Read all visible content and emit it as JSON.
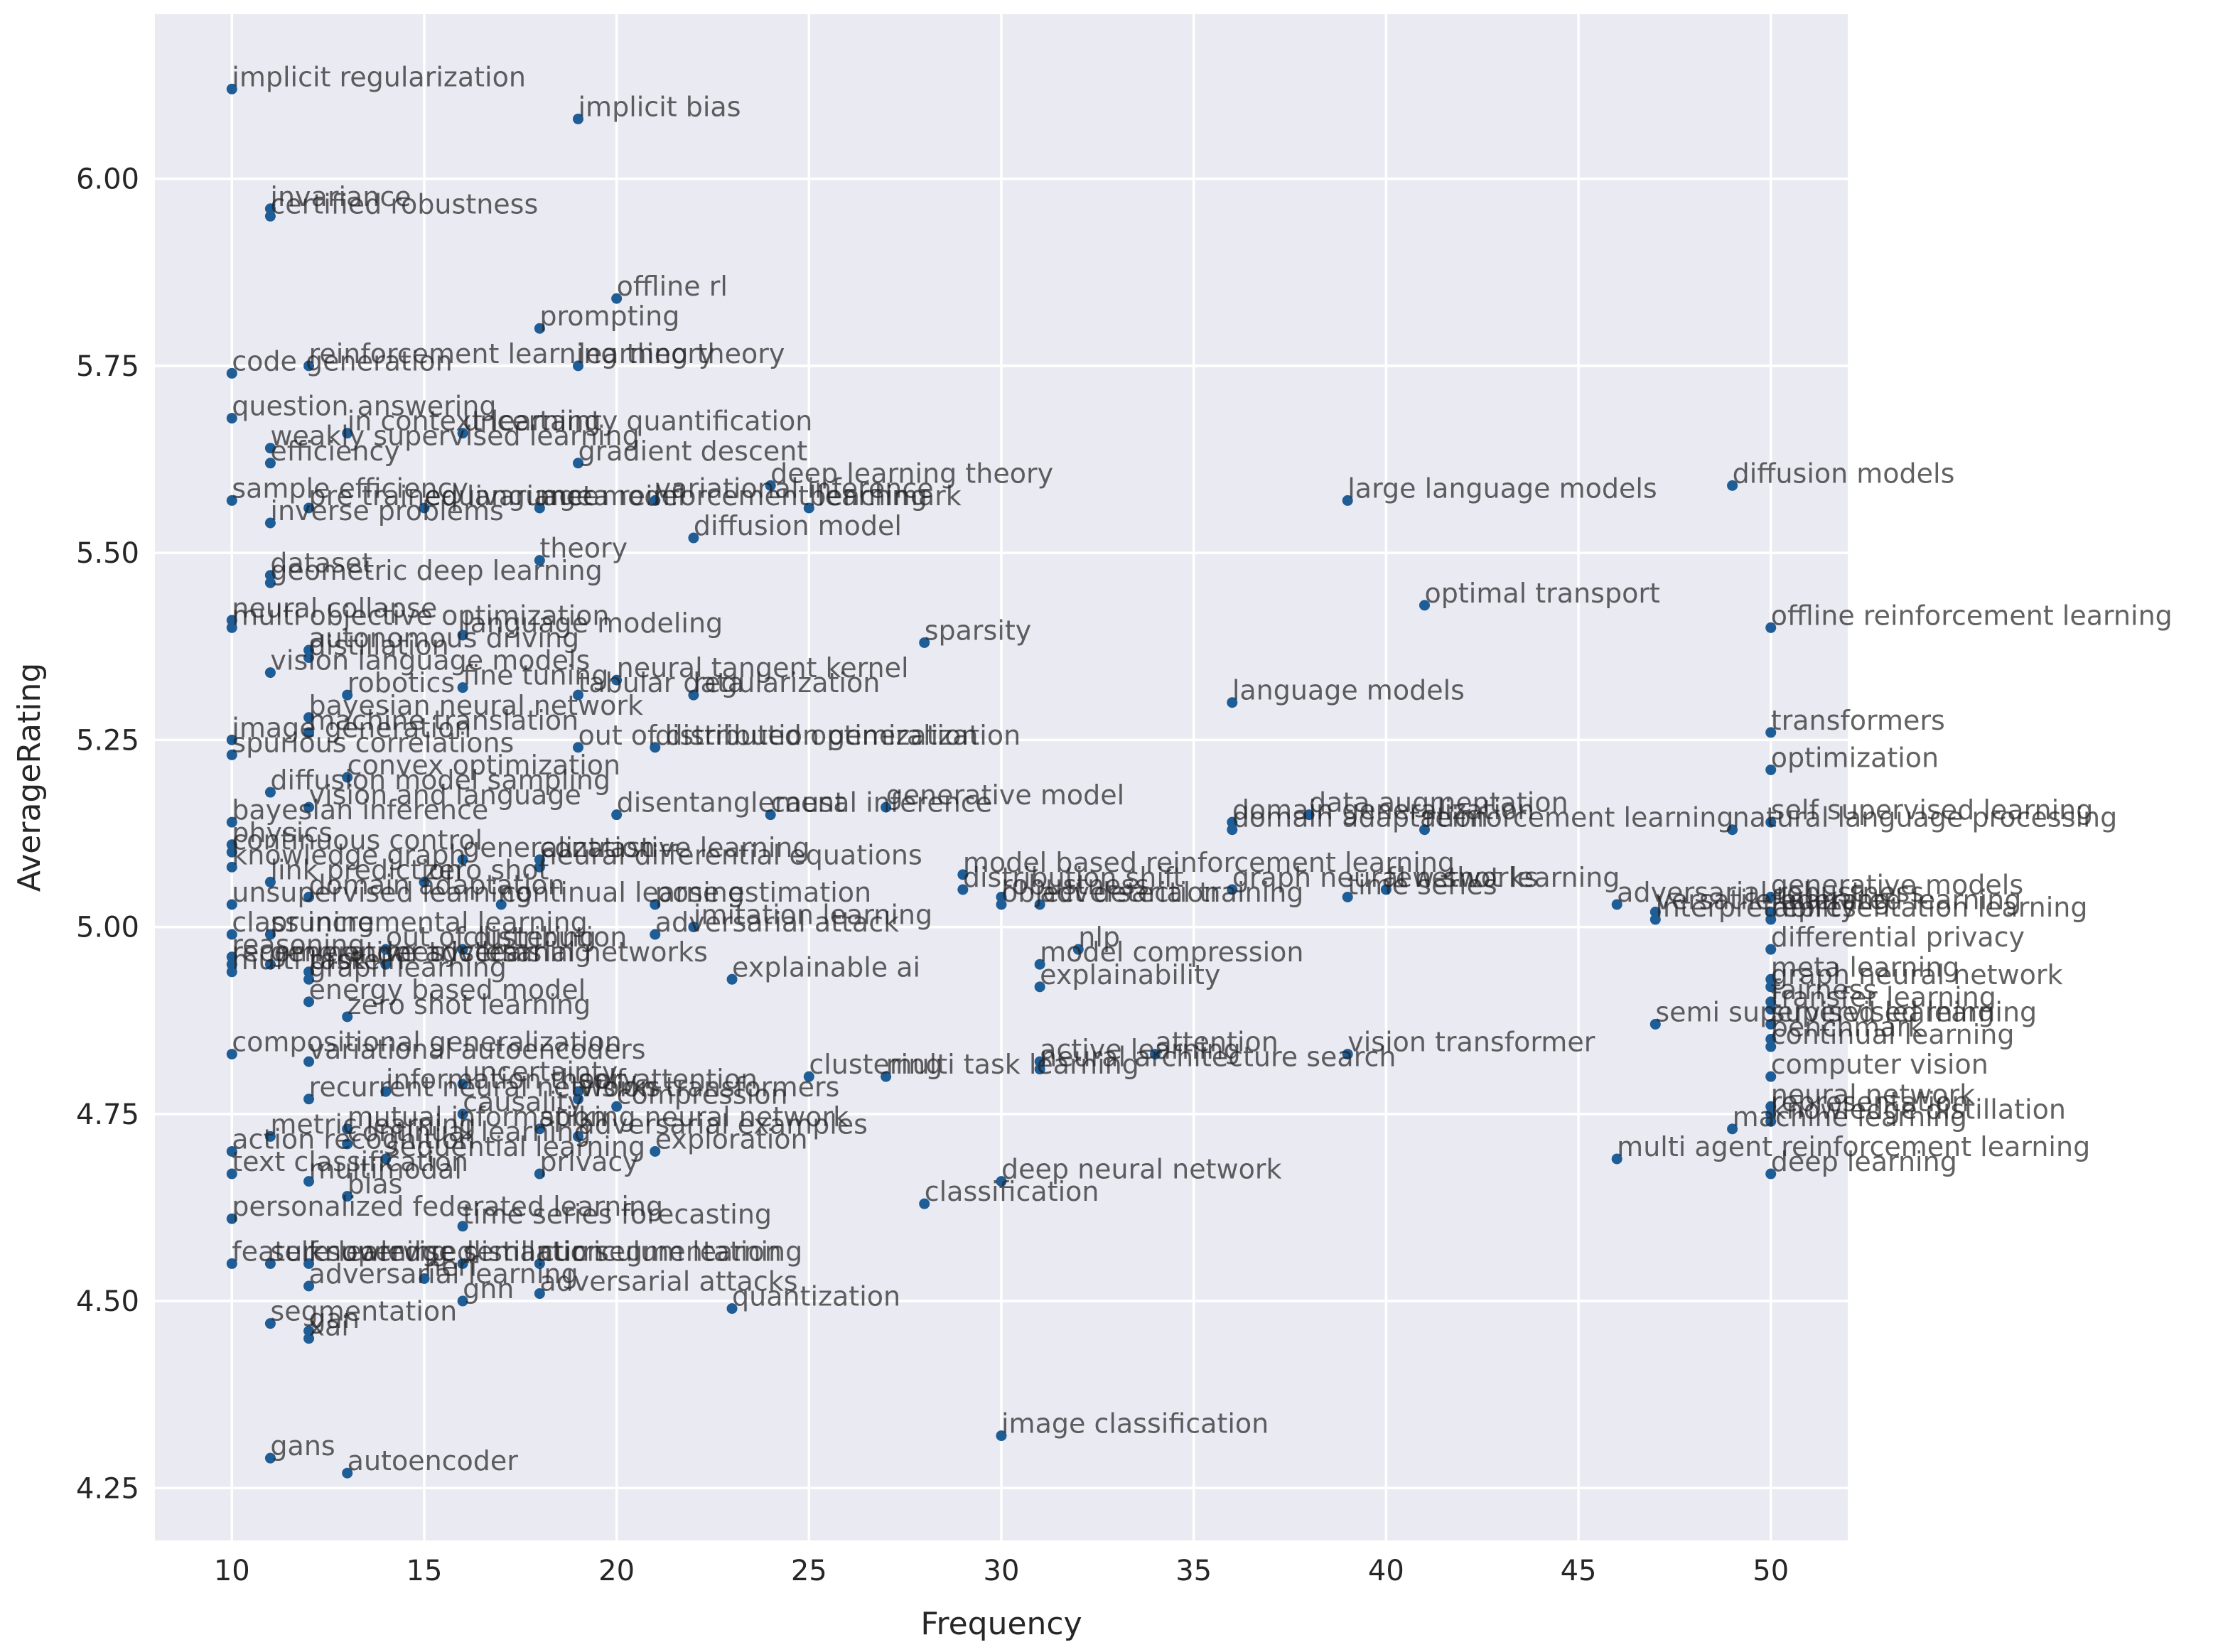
{
  "chart_data": {
    "type": "scatter",
    "xlabel": "Frequency",
    "ylabel": "AverageRating",
    "xlim": [
      8,
      52
    ],
    "ylim": [
      4.18,
      6.22
    ],
    "xticks": [
      10,
      15,
      20,
      25,
      30,
      35,
      40,
      45,
      50
    ],
    "yticks": [
      4.25,
      4.5,
      4.75,
      5.0,
      5.25,
      5.5,
      5.75,
      6.0
    ],
    "ytick_labels": [
      "4.25",
      "4.50",
      "4.75",
      "5.00",
      "5.25",
      "5.50",
      "5.75",
      "6.00"
    ],
    "grid": true,
    "colors": {
      "background": "#eaeaf2",
      "grid": "#ffffff",
      "marker": "#1f5d96"
    },
    "points": [
      {
        "label": "implicit regularization",
        "x": 10,
        "y": 6.12
      },
      {
        "label": "implicit bias",
        "x": 19,
        "y": 6.08
      },
      {
        "label": "invariance",
        "x": 11,
        "y": 5.96
      },
      {
        "label": "certified robustness",
        "x": 11,
        "y": 5.95
      },
      {
        "label": "offline rl",
        "x": 20,
        "y": 5.84
      },
      {
        "label": "prompting",
        "x": 18,
        "y": 5.8
      },
      {
        "label": "reinforcement learning theory",
        "x": 12,
        "y": 5.75
      },
      {
        "label": "learning theory",
        "x": 19,
        "y": 5.75
      },
      {
        "label": "code generation",
        "x": 10,
        "y": 5.74
      },
      {
        "label": "question answering",
        "x": 10,
        "y": 5.68
      },
      {
        "label": "in context learning",
        "x": 13,
        "y": 5.66
      },
      {
        "label": "uncertainty quantification",
        "x": 16,
        "y": 5.66
      },
      {
        "label": "weakly supervised learning",
        "x": 11,
        "y": 5.64
      },
      {
        "label": "efficiency",
        "x": 11,
        "y": 5.62
      },
      {
        "label": "gradient descent",
        "x": 19,
        "y": 5.62
      },
      {
        "label": "deep learning theory",
        "x": 24,
        "y": 5.59
      },
      {
        "label": "variational inference",
        "x": 21,
        "y": 5.57
      },
      {
        "label": "sample efficiency",
        "x": 10,
        "y": 5.57
      },
      {
        "label": "benchmark",
        "x": 25,
        "y": 5.56
      },
      {
        "label": "inverse problems",
        "x": 11,
        "y": 5.54
      },
      {
        "label": "pre trained language model",
        "x": 12,
        "y": 5.56
      },
      {
        "label": "equivariance",
        "x": 15,
        "y": 5.56
      },
      {
        "label": "meta reinforcement learning",
        "x": 18,
        "y": 5.56
      },
      {
        "label": "large language models",
        "x": 39,
        "y": 5.57
      },
      {
        "label": "diffusion models",
        "x": 49,
        "y": 5.59
      },
      {
        "label": "diffusion model",
        "x": 22,
        "y": 5.52
      },
      {
        "label": "theory",
        "x": 18,
        "y": 5.49
      },
      {
        "label": "dataset",
        "x": 11,
        "y": 5.47
      },
      {
        "label": "geometric deep learning",
        "x": 11,
        "y": 5.46
      },
      {
        "label": "optimal transport",
        "x": 41,
        "y": 5.43
      },
      {
        "label": "neural collapse",
        "x": 10,
        "y": 5.41
      },
      {
        "label": "multi objective optimization",
        "x": 10,
        "y": 5.4
      },
      {
        "label": "language modeling",
        "x": 16,
        "y": 5.39
      },
      {
        "label": "offline reinforcement learning",
        "x": 50,
        "y": 5.4
      },
      {
        "label": "sparsity",
        "x": 28,
        "y": 5.38
      },
      {
        "label": "autonomous driving",
        "x": 12,
        "y": 5.37
      },
      {
        "label": "distillation",
        "x": 12,
        "y": 5.36
      },
      {
        "label": "vision language models",
        "x": 11,
        "y": 5.34
      },
      {
        "label": "neural tangent kernel",
        "x": 20,
        "y": 5.33
      },
      {
        "label": "fine tuning",
        "x": 16,
        "y": 5.32
      },
      {
        "label": "robotics",
        "x": 13,
        "y": 5.31
      },
      {
        "label": "tabular data",
        "x": 19,
        "y": 5.31
      },
      {
        "label": "regularization",
        "x": 22,
        "y": 5.31
      },
      {
        "label": "bayesian neural network",
        "x": 12,
        "y": 5.28
      },
      {
        "label": "language models",
        "x": 36,
        "y": 5.3
      },
      {
        "label": "transformers",
        "x": 50,
        "y": 5.26
      },
      {
        "label": "machine translation",
        "x": 12,
        "y": 5.26
      },
      {
        "label": "image generation",
        "x": 10,
        "y": 5.25
      },
      {
        "label": "spurious correlations",
        "x": 10,
        "y": 5.23
      },
      {
        "label": "out of distribution generalization",
        "x": 19,
        "y": 5.24
      },
      {
        "label": "distributed optimization",
        "x": 21,
        "y": 5.24
      },
      {
        "label": "optimization",
        "x": 50,
        "y": 5.21
      },
      {
        "label": "convex optimization",
        "x": 13,
        "y": 5.2
      },
      {
        "label": "diffusion model sampling",
        "x": 11,
        "y": 5.18
      },
      {
        "label": "vision and language",
        "x": 12,
        "y": 5.16
      },
      {
        "label": "disentanglement",
        "x": 20,
        "y": 5.15
      },
      {
        "label": "causal inference",
        "x": 24,
        "y": 5.15
      },
      {
        "label": "generative model",
        "x": 27,
        "y": 5.16
      },
      {
        "label": "domain generalization",
        "x": 36,
        "y": 5.14
      },
      {
        "label": "data augmentation",
        "x": 38,
        "y": 5.15
      },
      {
        "label": "domain adaptation",
        "x": 36,
        "y": 5.13
      },
      {
        "label": "reinforcement learning",
        "x": 41,
        "y": 5.13
      },
      {
        "label": "self supervised learning",
        "x": 50,
        "y": 5.14
      },
      {
        "label": "natural language processing",
        "x": 49,
        "y": 5.13
      },
      {
        "label": "bayesian inference",
        "x": 10,
        "y": 5.14
      },
      {
        "label": "physics",
        "x": 10,
        "y": 5.11
      },
      {
        "label": "continuous control",
        "x": 10,
        "y": 5.1
      },
      {
        "label": "knowledge graph",
        "x": 10,
        "y": 5.08
      },
      {
        "label": "neural differential equations",
        "x": 18,
        "y": 5.08
      },
      {
        "label": "generalization",
        "x": 16,
        "y": 5.09
      },
      {
        "label": "contrastive learning",
        "x": 18,
        "y": 5.09
      },
      {
        "label": "model based reinforcement learning",
        "x": 29,
        "y": 5.07
      },
      {
        "label": "link prediction",
        "x": 11,
        "y": 5.06
      },
      {
        "label": "zero shot",
        "x": 15,
        "y": 5.06
      },
      {
        "label": "distribution shift",
        "x": 29,
        "y": 5.05
      },
      {
        "label": "graph neural networks",
        "x": 36,
        "y": 5.05
      },
      {
        "label": "few shot learning",
        "x": 40,
        "y": 5.05
      },
      {
        "label": "time series",
        "x": 39,
        "y": 5.04
      },
      {
        "label": "unsupervised learning",
        "x": 10,
        "y": 5.03
      },
      {
        "label": "domain adaptation",
        "x": 12,
        "y": 5.04
      },
      {
        "label": "continual learning",
        "x": 17,
        "y": 5.03
      },
      {
        "label": "pose estimation",
        "x": 21,
        "y": 5.03
      },
      {
        "label": "robustness",
        "x": 30,
        "y": 5.04
      },
      {
        "label": "object detection",
        "x": 30,
        "y": 5.03
      },
      {
        "label": "adversarial training",
        "x": 31,
        "y": 5.03
      },
      {
        "label": "adversarial robustness",
        "x": 46,
        "y": 5.03
      },
      {
        "label": "imitation learning",
        "x": 22,
        "y": 5.0
      },
      {
        "label": "versatile learning",
        "x": 47,
        "y": 5.02
      },
      {
        "label": "interpretability",
        "x": 47,
        "y": 5.01
      },
      {
        "label": "generative models",
        "x": 50,
        "y": 5.04
      },
      {
        "label": "federated learning",
        "x": 50,
        "y": 5.02
      },
      {
        "label": "representation learning",
        "x": 50,
        "y": 5.01
      },
      {
        "label": "class incremental learning",
        "x": 10,
        "y": 4.99
      },
      {
        "label": "pruning",
        "x": 11,
        "y": 4.99
      },
      {
        "label": "adversarial attack",
        "x": 21,
        "y": 4.99
      },
      {
        "label": "out of distribution",
        "x": 14,
        "y": 4.97
      },
      {
        "label": "clustering",
        "x": 16,
        "y": 4.97
      },
      {
        "label": "differential privacy",
        "x": 50,
        "y": 4.97
      },
      {
        "label": "nlp",
        "x": 32,
        "y": 4.97
      },
      {
        "label": "model compression",
        "x": 31,
        "y": 4.95
      },
      {
        "label": "reasoning",
        "x": 10,
        "y": 4.96
      },
      {
        "label": "recommender systems",
        "x": 10,
        "y": 4.95
      },
      {
        "label": "generative adversarial networks",
        "x": 11,
        "y": 4.95
      },
      {
        "label": "protein",
        "x": 12,
        "y": 4.94
      },
      {
        "label": "metric learning",
        "x": 14,
        "y": 4.95
      },
      {
        "label": "multi task",
        "x": 10,
        "y": 4.94
      },
      {
        "label": "graph learning",
        "x": 12,
        "y": 4.93
      },
      {
        "label": "explainable ai",
        "x": 23,
        "y": 4.93
      },
      {
        "label": "explainability",
        "x": 31,
        "y": 4.92
      },
      {
        "label": "meta learning",
        "x": 50,
        "y": 4.93
      },
      {
        "label": "graph neural network",
        "x": 50,
        "y": 4.92
      },
      {
        "label": "energy based model",
        "x": 12,
        "y": 4.9
      },
      {
        "label": "fairness",
        "x": 50,
        "y": 4.9
      },
      {
        "label": "transfer learning",
        "x": 50,
        "y": 4.89
      },
      {
        "label": "semi supervised learning",
        "x": 47,
        "y": 4.87
      },
      {
        "label": "zero shot learning",
        "x": 13,
        "y": 4.88
      },
      {
        "label": "supervised learning",
        "x": 50,
        "y": 4.87
      },
      {
        "label": "benchmark",
        "x": 50,
        "y": 4.85
      },
      {
        "label": "continual learning",
        "x": 50,
        "y": 4.84
      },
      {
        "label": "vision transformer",
        "x": 39,
        "y": 4.83
      },
      {
        "label": "attention",
        "x": 34,
        "y": 4.83
      },
      {
        "label": "compositional generalization",
        "x": 10,
        "y": 4.83
      },
      {
        "label": "variational autoencoders",
        "x": 12,
        "y": 4.82
      },
      {
        "label": "active learning",
        "x": 31,
        "y": 4.82
      },
      {
        "label": "neural architecture search",
        "x": 31,
        "y": 4.81
      },
      {
        "label": "computer vision",
        "x": 50,
        "y": 4.8
      },
      {
        "label": "clustering",
        "x": 25,
        "y": 4.8
      },
      {
        "label": "multi task learning",
        "x": 27,
        "y": 4.8
      },
      {
        "label": "uncertainty",
        "x": 16,
        "y": 4.79
      },
      {
        "label": "information theory",
        "x": 14,
        "y": 4.78
      },
      {
        "label": "self attention",
        "x": 19,
        "y": 4.78
      },
      {
        "label": "recurrent neural networks",
        "x": 12,
        "y": 4.77
      },
      {
        "label": "vision transformers",
        "x": 19,
        "y": 4.77
      },
      {
        "label": "compression",
        "x": 20,
        "y": 4.76
      },
      {
        "label": "causality",
        "x": 16,
        "y": 4.75
      },
      {
        "label": "neural network",
        "x": 50,
        "y": 4.76
      },
      {
        "label": "knowledge distillation",
        "x": 50,
        "y": 4.74
      },
      {
        "label": "machine learning",
        "x": 49,
        "y": 4.73
      },
      {
        "label": "representation",
        "x": 50,
        "y": 4.75
      },
      {
        "label": "mutual information",
        "x": 13,
        "y": 4.73
      },
      {
        "label": "spiking neural network",
        "x": 18,
        "y": 4.73
      },
      {
        "label": "metric learning",
        "x": 11,
        "y": 4.72
      },
      {
        "label": "continual learning",
        "x": 13,
        "y": 4.71
      },
      {
        "label": "adversarial examples",
        "x": 19,
        "y": 4.72
      },
      {
        "label": "action recognition",
        "x": 10,
        "y": 4.7
      },
      {
        "label": "exploration",
        "x": 21,
        "y": 4.7
      },
      {
        "label": "multi agent reinforcement learning",
        "x": 46,
        "y": 4.69
      },
      {
        "label": "text classification",
        "x": 10,
        "y": 4.67
      },
      {
        "label": "sequential learning",
        "x": 14,
        "y": 4.69
      },
      {
        "label": "privacy",
        "x": 18,
        "y": 4.67
      },
      {
        "label": "deep learning",
        "x": 50,
        "y": 4.67
      },
      {
        "label": "multimodal",
        "x": 12,
        "y": 4.66
      },
      {
        "label": "deep neural network",
        "x": 30,
        "y": 4.66
      },
      {
        "label": "bias",
        "x": 13,
        "y": 4.64
      },
      {
        "label": "classification",
        "x": 28,
        "y": 4.63
      },
      {
        "label": "personalized federated learning",
        "x": 10,
        "y": 4.61
      },
      {
        "label": "time series forecasting",
        "x": 16,
        "y": 4.6
      },
      {
        "label": "feature learning",
        "x": 10,
        "y": 4.55
      },
      {
        "label": "self supervised",
        "x": 11,
        "y": 4.55
      },
      {
        "label": "curriculum learning",
        "x": 18,
        "y": 4.55
      },
      {
        "label": "knowledge distillation",
        "x": 12,
        "y": 4.55
      },
      {
        "label": "semantic segmentation",
        "x": 16,
        "y": 4.55
      },
      {
        "label": "adversarial learning",
        "x": 12,
        "y": 4.52
      },
      {
        "label": "nerf",
        "x": 15,
        "y": 4.53
      },
      {
        "label": "adversarial attacks",
        "x": 18,
        "y": 4.51
      },
      {
        "label": "gnn",
        "x": 16,
        "y": 4.5
      },
      {
        "label": "quantization",
        "x": 23,
        "y": 4.49
      },
      {
        "label": "segmentation",
        "x": 11,
        "y": 4.47
      },
      {
        "label": "gan",
        "x": 12,
        "y": 4.46
      },
      {
        "label": "xai",
        "x": 12,
        "y": 4.45
      },
      {
        "label": "image classification",
        "x": 30,
        "y": 4.32
      },
      {
        "label": "gans",
        "x": 11,
        "y": 4.29
      },
      {
        "label": "autoencoder",
        "x": 13,
        "y": 4.27
      }
    ]
  }
}
